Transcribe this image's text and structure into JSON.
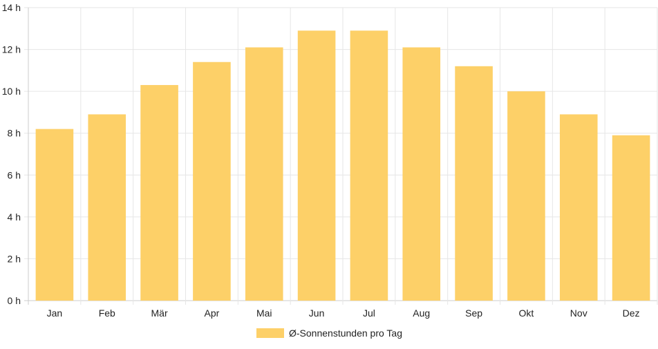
{
  "chart_data": {
    "type": "bar",
    "categories": [
      "Jan",
      "Feb",
      "Mär",
      "Apr",
      "Mai",
      "Jun",
      "Jul",
      "Aug",
      "Sep",
      "Okt",
      "Nov",
      "Dez"
    ],
    "series": [
      {
        "name": "Ø-Sonnenstunden pro Tag",
        "values": [
          8.2,
          8.9,
          10.3,
          11.4,
          12.1,
          12.9,
          12.9,
          12.1,
          11.2,
          10.0,
          8.9,
          7.9
        ]
      }
    ],
    "ylim": [
      0,
      14
    ],
    "yticks": [
      "0 h",
      "2 h",
      "4 h",
      "6 h",
      "8 h",
      "10 h",
      "12 h",
      "14 h"
    ],
    "title": "",
    "xlabel": "",
    "ylabel": "",
    "grid": true,
    "legend_position": "bottom",
    "colors": {
      "bar": "#fdd068",
      "grid": "#e6e6e6",
      "axis": "#cccccc",
      "text": "#222222"
    }
  }
}
